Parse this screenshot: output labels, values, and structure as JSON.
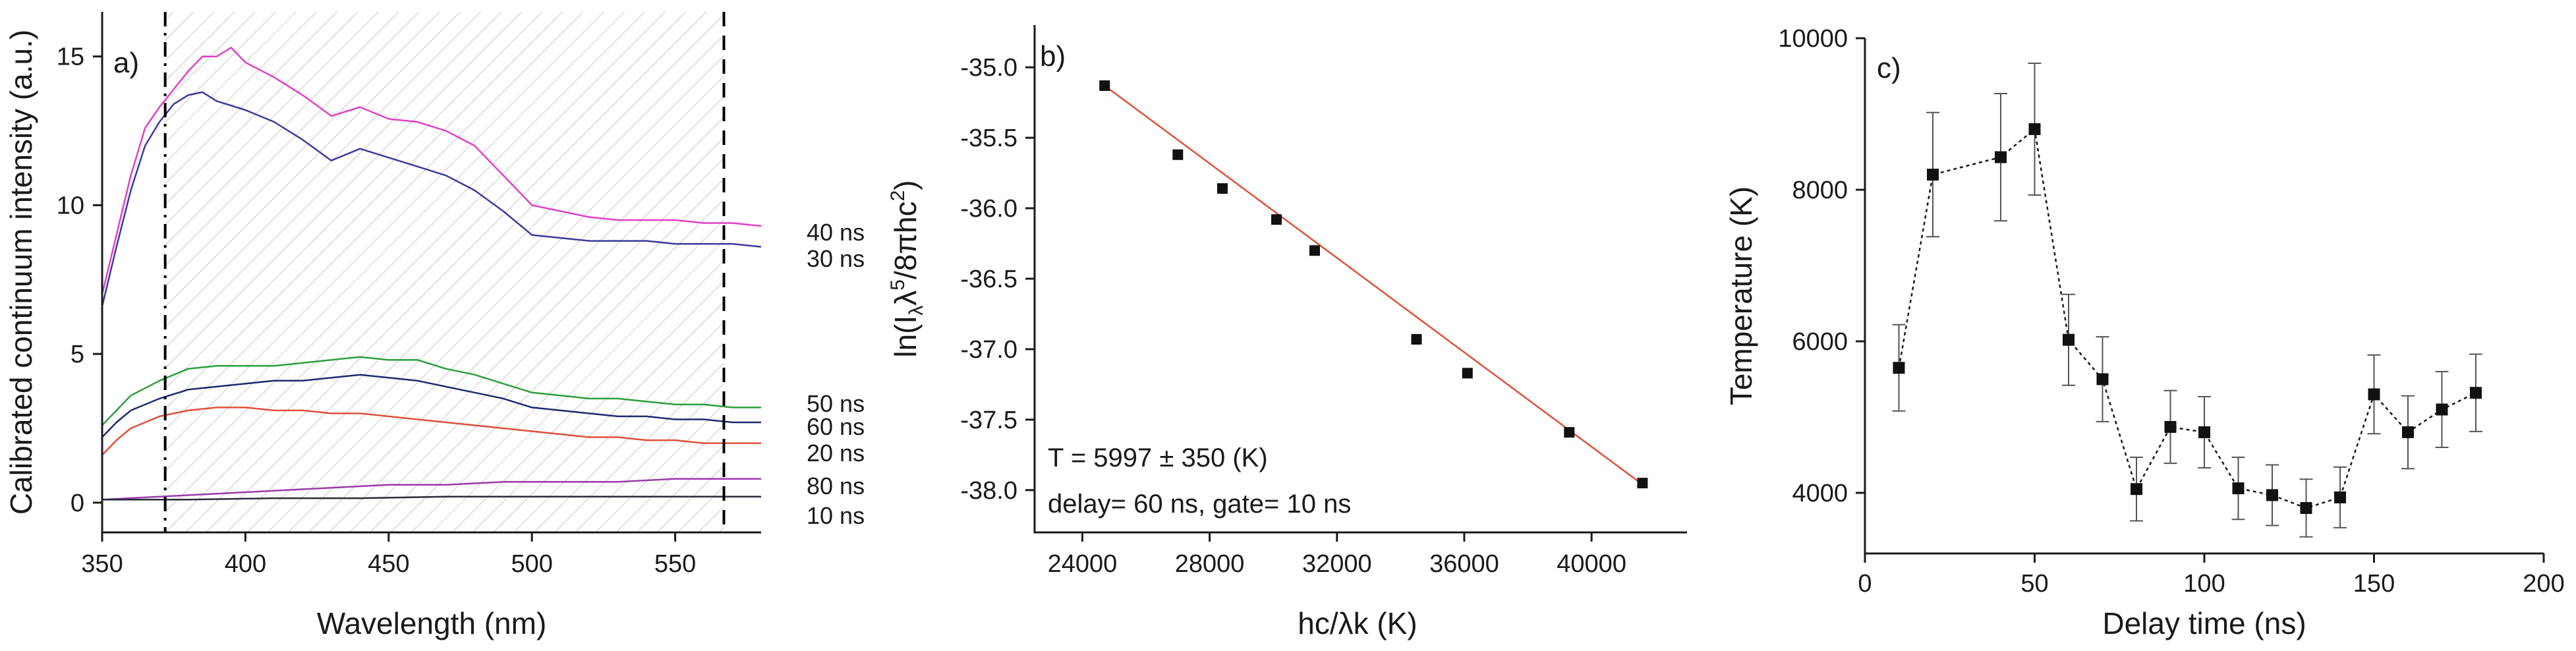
{
  "chart_data": [
    {
      "panel": "a)",
      "type": "line",
      "xlabel": "Wavelength (nm)",
      "ylabel": "Calibrated continuum intensity (a.u.)",
      "xlim": [
        350,
        580
      ],
      "ylim": [
        -1,
        16.5
      ],
      "xticks": [
        350,
        400,
        450,
        500,
        550
      ],
      "yticks": [
        0,
        5,
        10,
        15
      ],
      "shaded_region": [
        372,
        567
      ],
      "vlines": [
        372,
        567
      ],
      "series": [
        {
          "name": "40 ns",
          "color": "#e040c8",
          "points": [
            [
              350,
              7.0
            ],
            [
              355,
              9.0
            ],
            [
              360,
              11.0
            ],
            [
              365,
              12.6
            ],
            [
              370,
              13.3
            ],
            [
              375,
              13.9
            ],
            [
              380,
              14.5
            ],
            [
              385,
              15.0
            ],
            [
              390,
              15.0
            ],
            [
              395,
              15.3
            ],
            [
              400,
              14.8
            ],
            [
              410,
              14.3
            ],
            [
              420,
              13.7
            ],
            [
              430,
              13.0
            ],
            [
              440,
              13.3
            ],
            [
              450,
              12.9
            ],
            [
              460,
              12.8
            ],
            [
              470,
              12.5
            ],
            [
              480,
              12.0
            ],
            [
              490,
              11.0
            ],
            [
              500,
              10.0
            ],
            [
              510,
              9.8
            ],
            [
              520,
              9.6
            ],
            [
              530,
              9.5
            ],
            [
              540,
              9.5
            ],
            [
              550,
              9.5
            ],
            [
              560,
              9.4
            ],
            [
              570,
              9.4
            ],
            [
              580,
              9.3
            ]
          ]
        },
        {
          "name": "30 ns",
          "color": "#3a3a9e",
          "points": [
            [
              350,
              6.6
            ],
            [
              355,
              8.6
            ],
            [
              360,
              10.5
            ],
            [
              365,
              12.0
            ],
            [
              370,
              12.8
            ],
            [
              375,
              13.4
            ],
            [
              380,
              13.7
            ],
            [
              385,
              13.8
            ],
            [
              390,
              13.5
            ],
            [
              400,
              13.2
            ],
            [
              410,
              12.8
            ],
            [
              420,
              12.2
            ],
            [
              430,
              11.5
            ],
            [
              440,
              11.9
            ],
            [
              450,
              11.6
            ],
            [
              460,
              11.3
            ],
            [
              470,
              11.0
            ],
            [
              480,
              10.5
            ],
            [
              490,
              9.8
            ],
            [
              500,
              9.0
            ],
            [
              510,
              8.9
            ],
            [
              520,
              8.8
            ],
            [
              530,
              8.8
            ],
            [
              540,
              8.8
            ],
            [
              550,
              8.7
            ],
            [
              560,
              8.7
            ],
            [
              570,
              8.7
            ],
            [
              580,
              8.6
            ]
          ]
        },
        {
          "name": "50 ns",
          "color": "#2e9e3e",
          "points": [
            [
              350,
              2.6
            ],
            [
              355,
              3.1
            ],
            [
              360,
              3.6
            ],
            [
              370,
              4.1
            ],
            [
              380,
              4.5
            ],
            [
              390,
              4.6
            ],
            [
              400,
              4.6
            ],
            [
              410,
              4.6
            ],
            [
              420,
              4.7
            ],
            [
              430,
              4.8
            ],
            [
              440,
              4.9
            ],
            [
              450,
              4.8
            ],
            [
              460,
              4.8
            ],
            [
              470,
              4.5
            ],
            [
              480,
              4.3
            ],
            [
              490,
              4.0
            ],
            [
              500,
              3.7
            ],
            [
              510,
              3.6
            ],
            [
              520,
              3.5
            ],
            [
              530,
              3.5
            ],
            [
              540,
              3.4
            ],
            [
              550,
              3.3
            ],
            [
              560,
              3.3
            ],
            [
              570,
              3.2
            ],
            [
              580,
              3.2
            ]
          ]
        },
        {
          "name": "60 ns",
          "color": "#1c2a6e",
          "points": [
            [
              350,
              2.2
            ],
            [
              355,
              2.7
            ],
            [
              360,
              3.1
            ],
            [
              370,
              3.5
            ],
            [
              380,
              3.8
            ],
            [
              390,
              3.9
            ],
            [
              400,
              4.0
            ],
            [
              410,
              4.1
            ],
            [
              420,
              4.1
            ],
            [
              430,
              4.2
            ],
            [
              440,
              4.3
            ],
            [
              450,
              4.2
            ],
            [
              460,
              4.1
            ],
            [
              470,
              3.9
            ],
            [
              480,
              3.7
            ],
            [
              490,
              3.5
            ],
            [
              500,
              3.2
            ],
            [
              510,
              3.1
            ],
            [
              520,
              3.0
            ],
            [
              530,
              2.9
            ],
            [
              540,
              2.9
            ],
            [
              550,
              2.8
            ],
            [
              560,
              2.8
            ],
            [
              570,
              2.7
            ],
            [
              580,
              2.7
            ]
          ]
        },
        {
          "name": "20 ns",
          "color": "#e0503a",
          "points": [
            [
              350,
              1.6
            ],
            [
              355,
              2.1
            ],
            [
              360,
              2.5
            ],
            [
              370,
              2.9
            ],
            [
              380,
              3.1
            ],
            [
              390,
              3.2
            ],
            [
              400,
              3.2
            ],
            [
              410,
              3.1
            ],
            [
              420,
              3.1
            ],
            [
              430,
              3.0
            ],
            [
              440,
              3.0
            ],
            [
              450,
              2.9
            ],
            [
              460,
              2.8
            ],
            [
              470,
              2.7
            ],
            [
              480,
              2.6
            ],
            [
              490,
              2.5
            ],
            [
              500,
              2.4
            ],
            [
              510,
              2.3
            ],
            [
              520,
              2.2
            ],
            [
              530,
              2.2
            ],
            [
              540,
              2.1
            ],
            [
              550,
              2.1
            ],
            [
              560,
              2.0
            ],
            [
              570,
              2.0
            ],
            [
              580,
              2.0
            ]
          ]
        },
        {
          "name": "80 ns",
          "color": "#9a3aa8",
          "points": [
            [
              350,
              0.1
            ],
            [
              370,
              0.2
            ],
            [
              390,
              0.3
            ],
            [
              410,
              0.4
            ],
            [
              430,
              0.5
            ],
            [
              450,
              0.6
            ],
            [
              470,
              0.6
            ],
            [
              490,
              0.7
            ],
            [
              510,
              0.7
            ],
            [
              530,
              0.7
            ],
            [
              550,
              0.8
            ],
            [
              570,
              0.8
            ],
            [
              580,
              0.8
            ]
          ]
        },
        {
          "name": "10 ns",
          "color": "#2a2a3a",
          "points": [
            [
              350,
              0.1
            ],
            [
              380,
              0.1
            ],
            [
              410,
              0.15
            ],
            [
              440,
              0.15
            ],
            [
              470,
              0.2
            ],
            [
              500,
              0.2
            ],
            [
              530,
              0.2
            ],
            [
              560,
              0.2
            ],
            [
              580,
              0.2
            ]
          ]
        }
      ]
    },
    {
      "panel": "b)",
      "type": "scatter",
      "xlabel": "hc/λk (K)",
      "ylabel_prefix": "ln(I",
      "ylabel_sub": "λ",
      "ylabel_mid": "λ",
      "ylabel_sup1": "5",
      "ylabel_div": "/8πhc",
      "ylabel_sup2": "2",
      "ylabel_suffix": ")",
      "xlim": [
        22500,
        43000
      ],
      "ylim": [
        -38.3,
        -34.7
      ],
      "xticks": [
        24000,
        28000,
        32000,
        36000,
        40000
      ],
      "yticks": [
        -35.0,
        -35.5,
        -36.0,
        -36.5,
        -37.0,
        -37.5,
        -38.0
      ],
      "ytick_labels": [
        "-35.0",
        "-35.5",
        "-36.0",
        "-36.5",
        "-37.0",
        "-37.5",
        "-38.0"
      ],
      "points": [
        [
          24700,
          -35.13
        ],
        [
          27000,
          -35.62
        ],
        [
          28400,
          -35.86
        ],
        [
          30100,
          -36.08
        ],
        [
          31300,
          -36.3
        ],
        [
          34500,
          -36.93
        ],
        [
          36100,
          -37.17
        ],
        [
          39300,
          -37.59
        ],
        [
          41600,
          -37.95
        ]
      ],
      "fit_line": {
        "color": "#e0503a",
        "from": [
          24700,
          -35.13
        ],
        "to": [
          41600,
          -37.96
        ]
      },
      "annotation_1": "T = 5997  ±  350 (K)",
      "annotation_2": "delay= 60 ns, gate= 10 ns"
    },
    {
      "panel": "c)",
      "type": "scatter",
      "xlabel": "Delay time (ns)",
      "ylabel": "Temperature (K)",
      "xlim": [
        0,
        200
      ],
      "ylim": [
        3200,
        10000
      ],
      "xticks": [
        0,
        50,
        100,
        150,
        200
      ],
      "yticks": [
        4000,
        6000,
        8000,
        10000
      ],
      "x": [
        10,
        20,
        40,
        50,
        60,
        70,
        80,
        90,
        100,
        110,
        120,
        130,
        140,
        150,
        160,
        170,
        180
      ],
      "y": [
        5650,
        8200,
        8430,
        8800,
        6020,
        5500,
        4050,
        4870,
        4800,
        4060,
        3970,
        3800,
        3940,
        5300,
        4800,
        5100,
        5320
      ],
      "yerr": [
        570,
        820,
        840,
        870,
        600,
        560,
        420,
        480,
        470,
        410,
        400,
        380,
        400,
        520,
        480,
        500,
        510
      ]
    }
  ]
}
